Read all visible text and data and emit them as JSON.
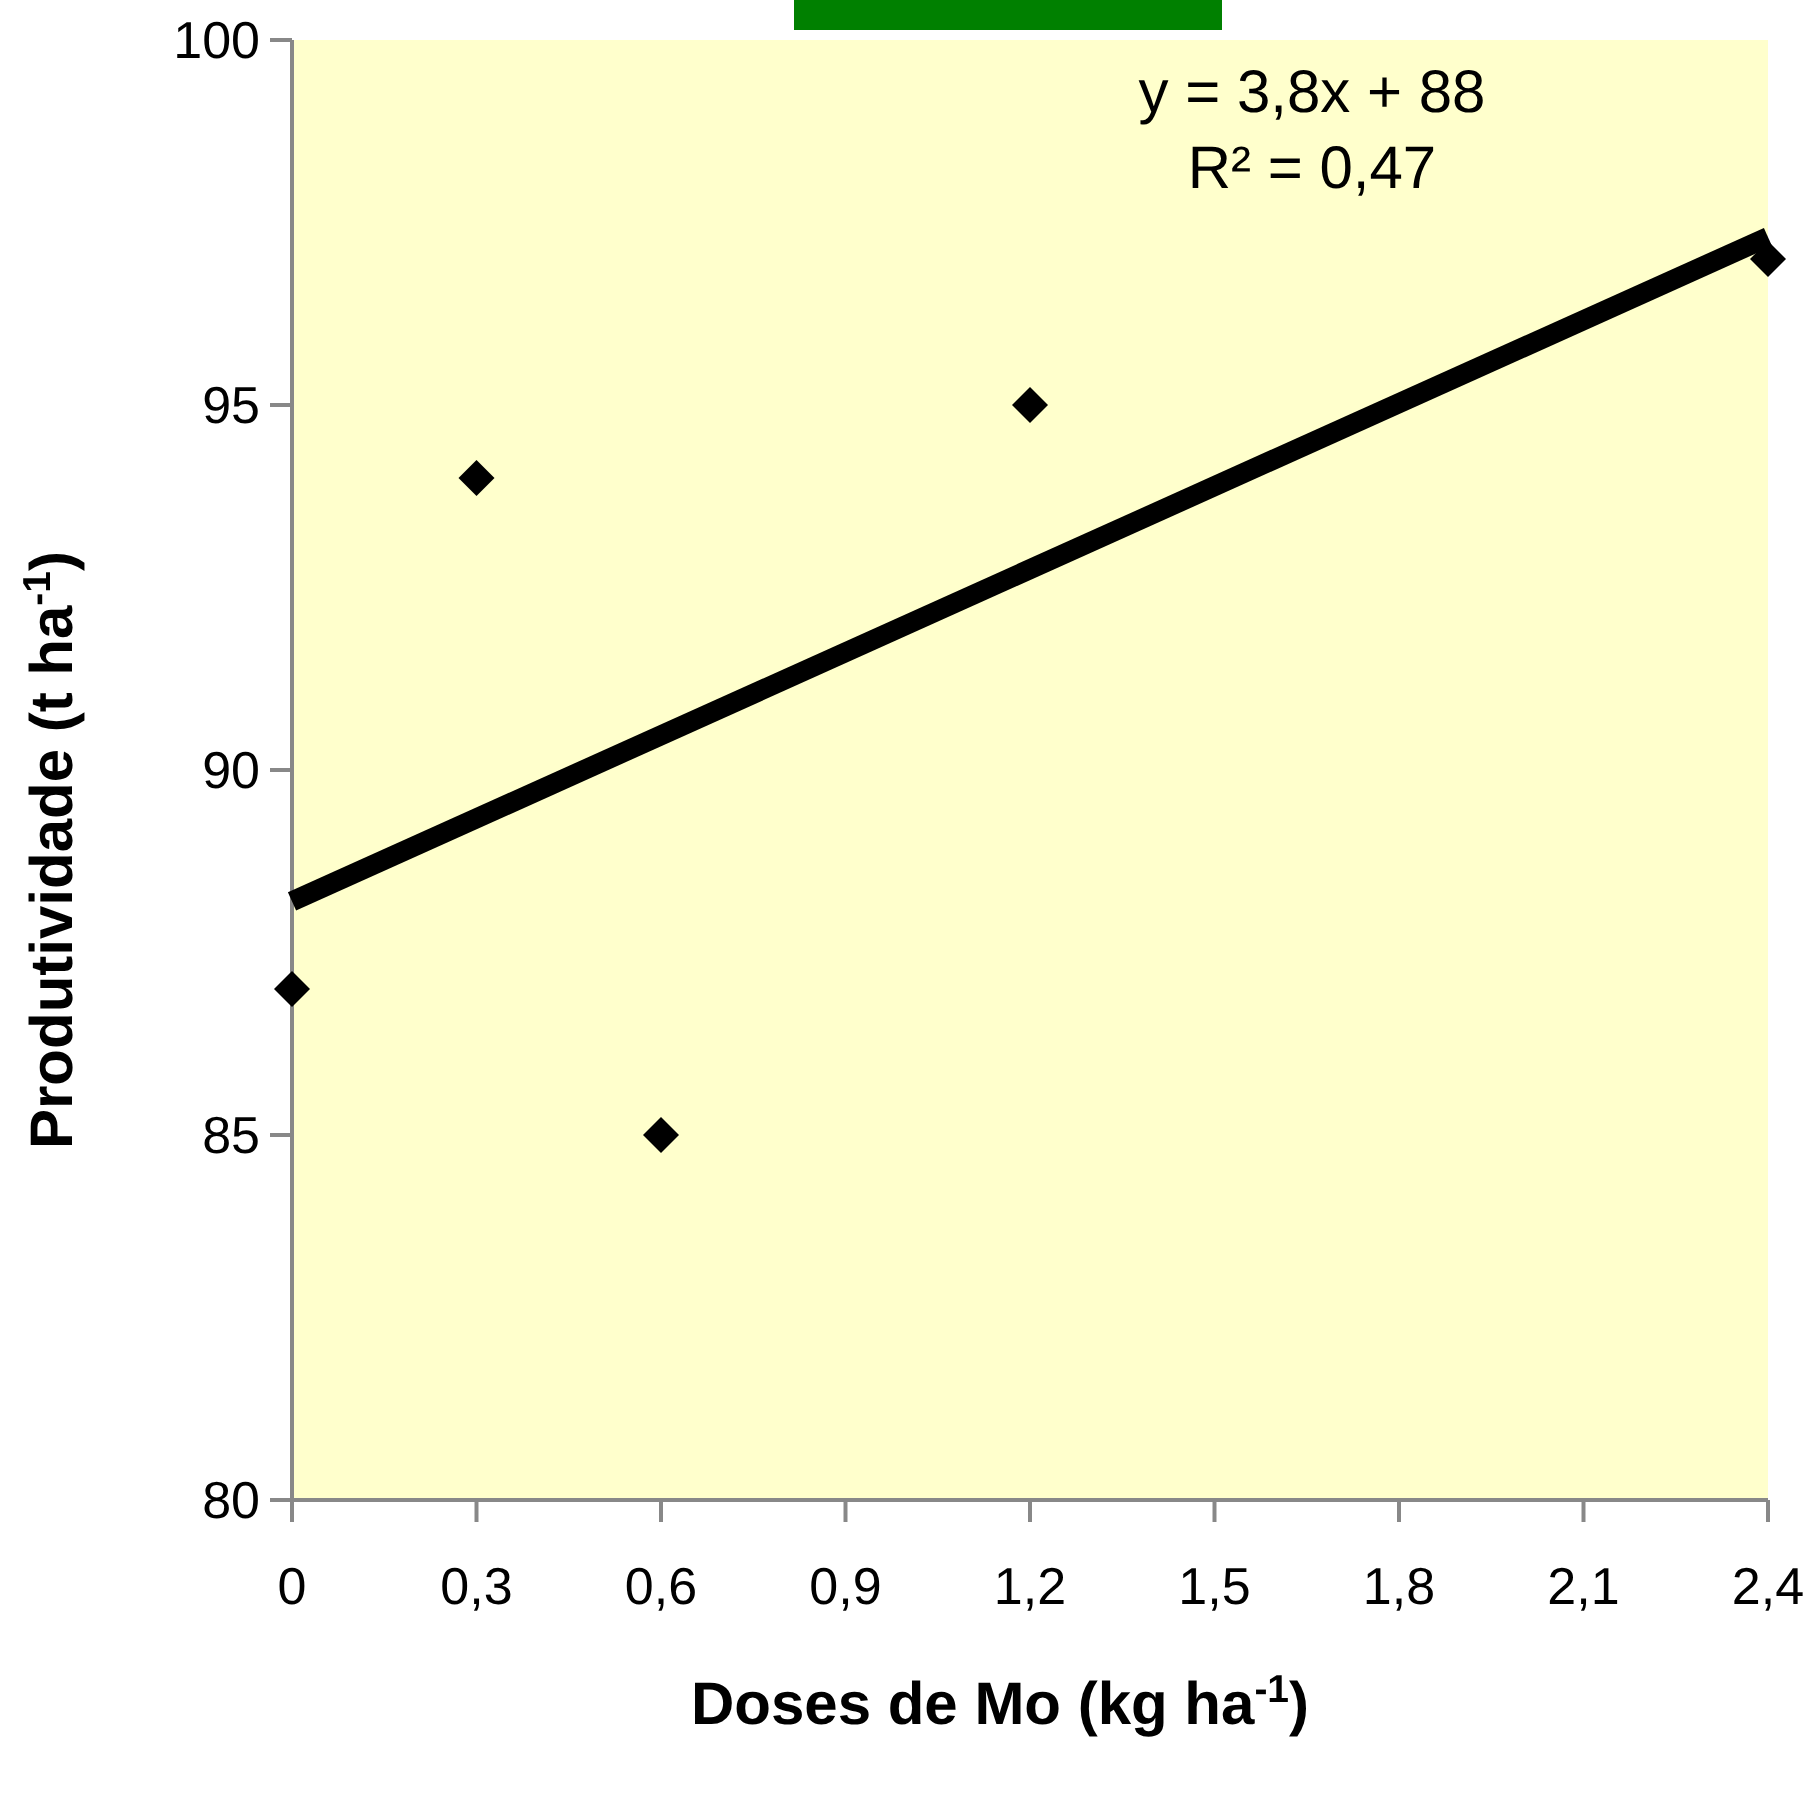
{
  "chart_data": {
    "type": "scatter",
    "xlabel": "Doses de Mo (kg ha$^{-1}$)",
    "ylabel": "Produtividade (t ha$^{-1}$)",
    "annotations": [
      "y = 3,8x + 88",
      "R² = 0,47"
    ],
    "xlim": [
      0,
      2.4
    ],
    "xticks": [
      0,
      {
        "value": 0.3,
        "label": "0,3"
      },
      {
        "value": 0.6,
        "label": "0,6"
      },
      {
        "value": 0.9,
        "label": "0,9"
      },
      {
        "value": 1.2,
        "label": "1,2"
      },
      {
        "value": 1.5,
        "label": "1,5"
      },
      {
        "value": 1.8,
        "label": "1,8"
      },
      {
        "value": 2.1,
        "label": "2,1"
      },
      {
        "value": 2.4,
        "label": "2,4"
      }
    ],
    "ylim": [
      80,
      100
    ],
    "yticks": [
      80,
      85,
      90,
      95,
      100
    ],
    "grid": false,
    "series": [
      {
        "color": "#000000",
        "marker": "diamond",
        "x": [
          0,
          0.3,
          0.6,
          1.2,
          2.4
        ],
        "values": [
          87,
          94,
          85,
          95,
          97
        ]
      },
      {
        "type": "line",
        "color": "#000000",
        "marker": "none",
        "line_style": "solid",
        "x": [
          0,
          2.4
        ],
        "values": [
          88.2,
          97.3
        ]
      }
    ]
  }
}
